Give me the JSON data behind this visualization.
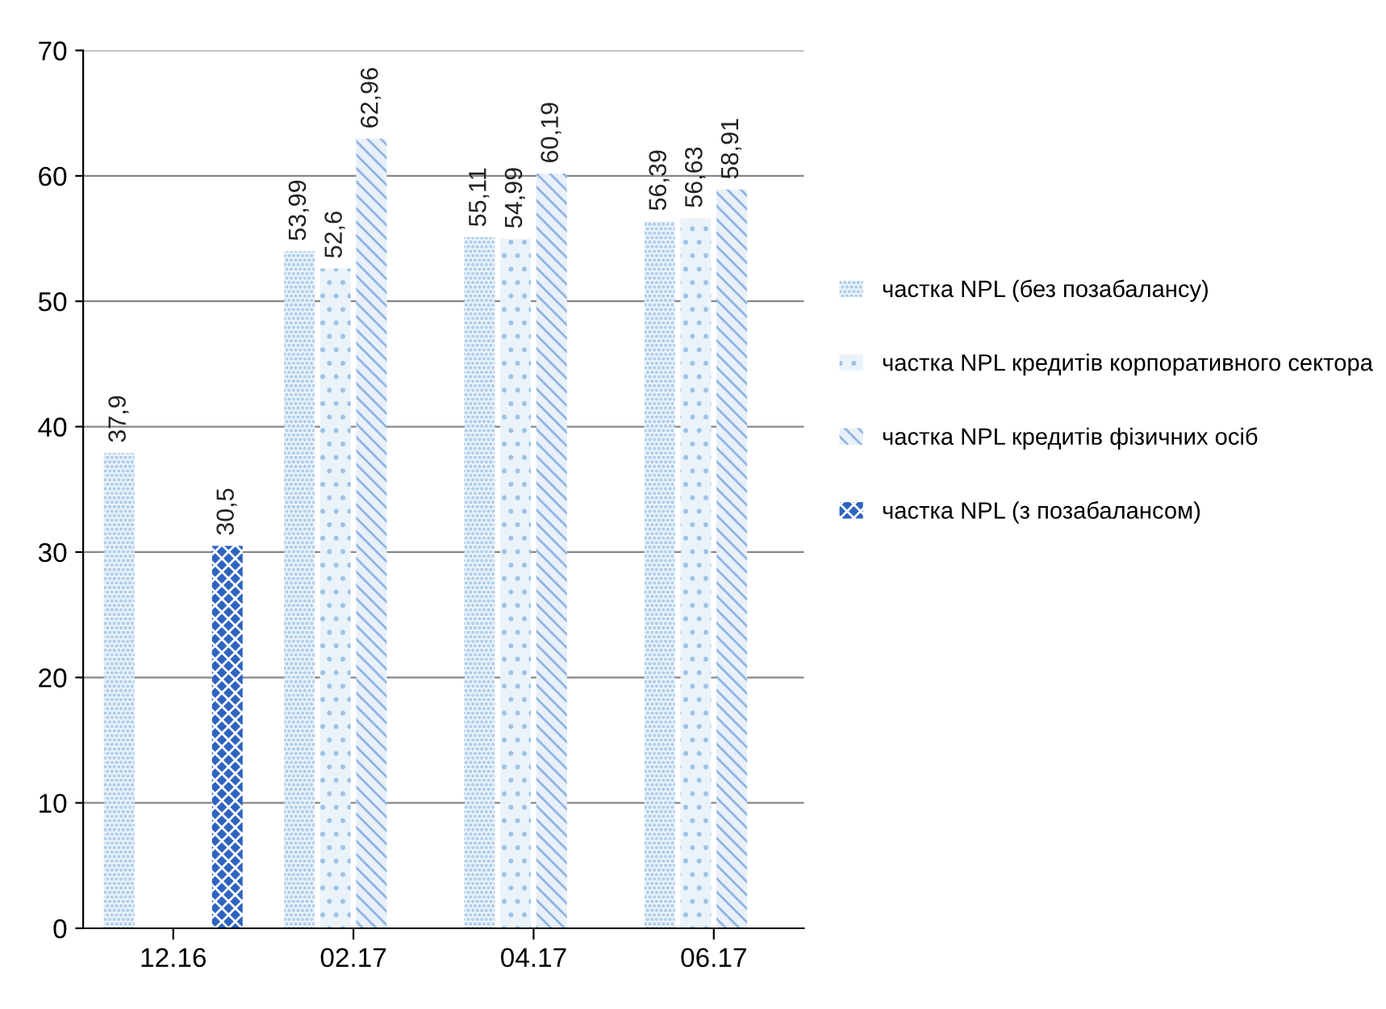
{
  "chart_data": {
    "type": "bar",
    "categories": [
      "12.16",
      "02.17",
      "04.17",
      "06.17"
    ],
    "series": [
      {
        "name": "частка NPL (без позабалансу)",
        "color": "#9dc3e6",
        "values": [
          37.9,
          53.99,
          55.11,
          56.39
        ],
        "value_labels": [
          "37,9",
          "53,99",
          "55,11",
          "56,39"
        ]
      },
      {
        "name": "частка NPL кредитів корпоративного сектора",
        "color": "#9dc3e6",
        "values": [
          null,
          52.6,
          54.99,
          56.63
        ],
        "value_labels": [
          null,
          "52,6",
          "54,99",
          "56,63"
        ]
      },
      {
        "name": "частка NPL кредитів фізичних осіб",
        "color": "#8fb4e3",
        "values": [
          null,
          62.96,
          60.19,
          58.91
        ],
        "value_labels": [
          null,
          "62,96",
          "60,19",
          "58,91"
        ]
      },
      {
        "name": "частка NPL (з позабалансом)",
        "color": "#2e64c0",
        "values": [
          30.5,
          null,
          null,
          null
        ],
        "value_labels": [
          "30,5",
          null,
          null,
          null
        ]
      }
    ],
    "ylim": [
      0,
      70
    ],
    "yticks": [
      0,
      10,
      20,
      30,
      40,
      50,
      60,
      70
    ],
    "grid": "y",
    "legend": "right"
  }
}
